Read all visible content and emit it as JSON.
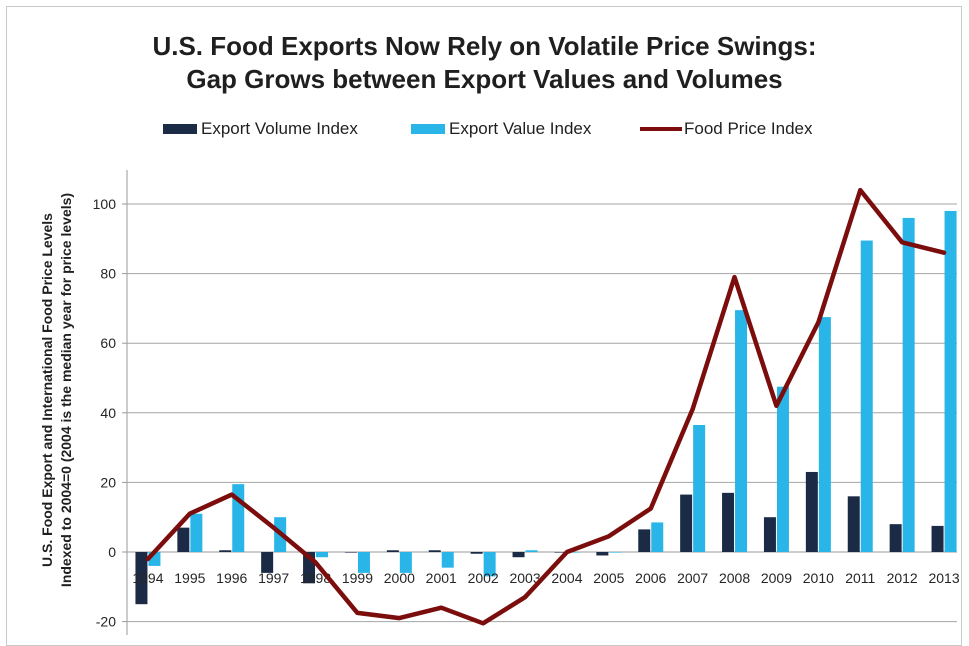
{
  "chart_data": {
    "type": "bar",
    "title": [
      "U.S. Food Exports Now Rely on Volatile Price Swings:",
      "Gap Grows between Export Values and Volumes"
    ],
    "ylabel": [
      "U.S. Food Export and International Food Price Levels",
      "Indexed to 2004=0 (2004 is the median year for price levels)"
    ],
    "xlabel": "",
    "categories": [
      "1994",
      "1995",
      "1996",
      "1997",
      "1998",
      "1999",
      "2000",
      "2001",
      "2002",
      "2003",
      "2004",
      "2005",
      "2006",
      "2007",
      "2008",
      "2009",
      "2010",
      "2011",
      "2012",
      "2013"
    ],
    "ylim": [
      -20,
      110
    ],
    "yticks": [
      -20,
      0,
      20,
      40,
      60,
      80,
      100
    ],
    "grid": true,
    "legend_position": "top",
    "series": [
      {
        "name": "Export Volume Index",
        "type": "bar",
        "color": "#1c2b45",
        "values": [
          -15,
          7,
          0.5,
          -6,
          -9,
          0,
          0.5,
          0.5,
          -0.5,
          -1.5,
          0,
          -1,
          6.5,
          16.5,
          17,
          10,
          23,
          16,
          8,
          7.5
        ]
      },
      {
        "name": "Export Value Index",
        "type": "bar",
        "color": "#29b5e8",
        "values": [
          -4,
          11,
          19.5,
          10,
          -1.5,
          -6,
          -6,
          -4.5,
          -7,
          0.5,
          0,
          0,
          8.5,
          36.5,
          69.5,
          47.5,
          67.5,
          89.5,
          96,
          98
        ]
      },
      {
        "name": "Food Price Index",
        "type": "line",
        "color": "#7b0d0d",
        "values": [
          -2,
          11,
          16.5,
          7,
          -3,
          -17.5,
          -19,
          -16,
          -20.5,
          -13,
          0,
          4.5,
          12.5,
          41,
          79,
          42,
          66,
          104,
          89,
          86
        ]
      }
    ]
  }
}
